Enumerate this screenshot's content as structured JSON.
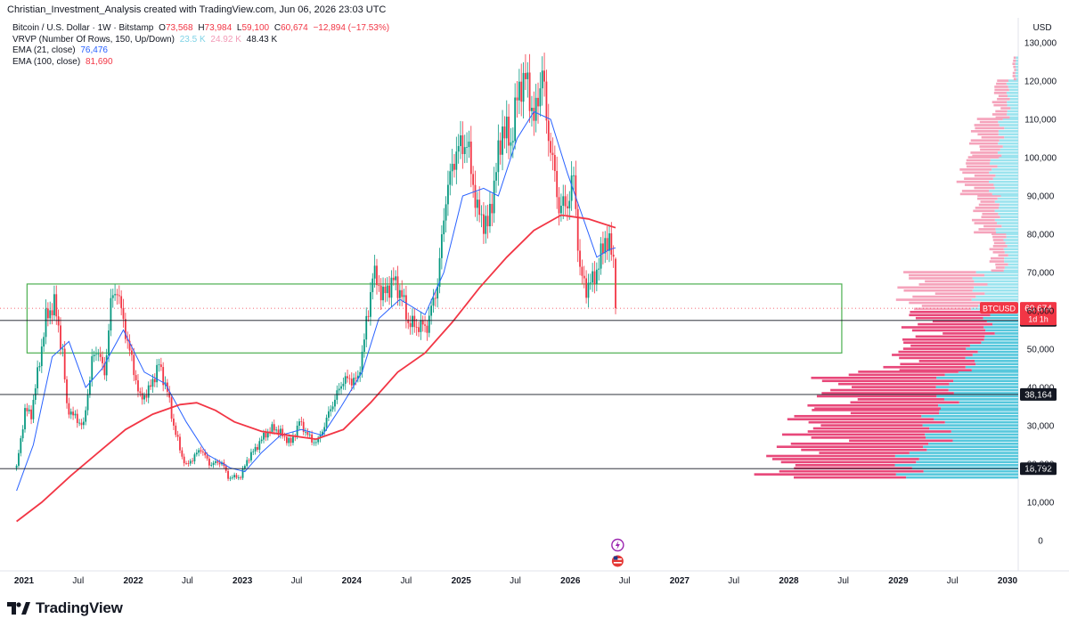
{
  "header": {
    "credit": "Christian_Investment_Analysis created with TradingView.com, Jun 06, 2026 23:03 UTC"
  },
  "legend": {
    "symbol": "Bitcoin / U.S. Dollar · 1W · Bitstamp",
    "open_label": "O",
    "open": "73,568",
    "high_label": "H",
    "high": "73,984",
    "low_label": "L",
    "low": "59,100",
    "close_label": "C",
    "close": "60,674",
    "change": "−12,894 (−17.53%)",
    "vrvp_label": "VRVP (Number Of Rows, 150, Up/Down)",
    "vrvp_up": "23.5 K",
    "vrvp_down": "24.92 K",
    "vrvp_total": "48.43 K",
    "ema21_label": "EMA (21, close)",
    "ema21_value": "76,476",
    "ema100_label": "EMA (100, close)",
    "ema100_value": "81,690"
  },
  "colors": {
    "up": "#089981",
    "down": "#f23645",
    "ema21": "#2962ff",
    "ema100": "#f23645",
    "vp_up": "#9be3ee",
    "vp_down": "#f5a3bb",
    "vp_up_va": "#56c7dc",
    "vp_down_va": "#e8487a",
    "zone": "#4caf50",
    "level": "#131722"
  },
  "chart_data": {
    "type": "candlestick",
    "currency_label": "USD",
    "y_ticks": [
      0,
      10000,
      20000,
      30000,
      40000,
      50000,
      60000,
      70000,
      80000,
      90000,
      100000,
      110000,
      120000,
      130000
    ],
    "y_tick_labels": [
      "0",
      "10,000",
      "20,000",
      "30,000",
      "40,000",
      "50,000",
      "60,000",
      "70,000",
      "80,000",
      "90,000",
      "100,000",
      "110,000",
      "120,000",
      "130,000"
    ],
    "x_ticks": [
      {
        "date": "2021-01-01",
        "label": "2021",
        "bold": true
      },
      {
        "date": "2021-07-01",
        "label": "Jul",
        "bold": false
      },
      {
        "date": "2022-01-01",
        "label": "2022",
        "bold": true
      },
      {
        "date": "2022-07-01",
        "label": "Jul",
        "bold": false
      },
      {
        "date": "2023-01-01",
        "label": "2023",
        "bold": true
      },
      {
        "date": "2023-07-01",
        "label": "Jul",
        "bold": false
      },
      {
        "date": "2024-01-01",
        "label": "2024",
        "bold": true
      },
      {
        "date": "2024-07-01",
        "label": "Jul",
        "bold": false
      },
      {
        "date": "2025-01-01",
        "label": "2025",
        "bold": true
      },
      {
        "date": "2025-07-01",
        "label": "Jul",
        "bold": false
      },
      {
        "date": "2026-01-01",
        "label": "2026",
        "bold": true
      },
      {
        "date": "2026-07-01",
        "label": "Jul",
        "bold": false
      },
      {
        "date": "2027-01-01",
        "label": "2027",
        "bold": true
      },
      {
        "date": "2027-07-01",
        "label": "Jul",
        "bold": false
      },
      {
        "date": "2028-01-01",
        "label": "2028",
        "bold": true
      },
      {
        "date": "2028-07-01",
        "label": "Jul",
        "bold": false
      },
      {
        "date": "2029-01-01",
        "label": "2029",
        "bold": true
      },
      {
        "date": "2029-07-01",
        "label": "Jul",
        "bold": false
      },
      {
        "date": "2030-01-01",
        "label": "2030",
        "bold": true
      }
    ],
    "price_path": [
      [
        "2020-12-07",
        19000
      ],
      [
        "2021-01-04",
        34000
      ],
      [
        "2021-01-25",
        33000
      ],
      [
        "2021-02-22",
        47000
      ],
      [
        "2021-03-15",
        58000
      ],
      [
        "2021-04-12",
        62000
      ],
      [
        "2021-05-10",
        49000
      ],
      [
        "2021-05-24",
        35000
      ],
      [
        "2021-06-21",
        32000
      ],
      [
        "2021-07-19",
        30000
      ],
      [
        "2021-08-16",
        47000
      ],
      [
        "2021-09-06",
        50000
      ],
      [
        "2021-09-27",
        43000
      ],
      [
        "2021-10-18",
        62000
      ],
      [
        "2021-11-08",
        66000
      ],
      [
        "2021-11-29",
        57000
      ],
      [
        "2021-12-27",
        47000
      ],
      [
        "2022-01-24",
        37000
      ],
      [
        "2022-02-21",
        39000
      ],
      [
        "2022-03-28",
        46000
      ],
      [
        "2022-04-25",
        39000
      ],
      [
        "2022-05-16",
        30000
      ],
      [
        "2022-06-13",
        22000
      ],
      [
        "2022-06-27",
        19500
      ],
      [
        "2022-08-15",
        24000
      ],
      [
        "2022-09-12",
        20000
      ],
      [
        "2022-10-24",
        20500
      ],
      [
        "2022-11-14",
        16500
      ],
      [
        "2022-12-26",
        16700
      ],
      [
        "2023-01-16",
        21000
      ],
      [
        "2023-02-13",
        24000
      ],
      [
        "2023-03-20",
        28000
      ],
      [
        "2023-04-17",
        29500
      ],
      [
        "2023-06-12",
        25500
      ],
      [
        "2023-07-10",
        31000
      ],
      [
        "2023-08-21",
        26000
      ],
      [
        "2023-09-11",
        26000
      ],
      [
        "2023-10-23",
        34500
      ],
      [
        "2023-12-04",
        42000
      ],
      [
        "2024-01-22",
        42000
      ],
      [
        "2024-02-26",
        60000
      ],
      [
        "2024-03-11",
        70000
      ],
      [
        "2024-04-15",
        64000
      ],
      [
        "2024-05-20",
        68000
      ],
      [
        "2024-06-17",
        64000
      ],
      [
        "2024-07-08",
        57000
      ],
      [
        "2024-08-05",
        56000
      ],
      [
        "2024-09-09",
        56000
      ],
      [
        "2024-10-14",
        67000
      ],
      [
        "2024-11-11",
        90000
      ],
      [
        "2024-12-16",
        102000
      ],
      [
        "2025-01-20",
        104000
      ],
      [
        "2025-02-24",
        86000
      ],
      [
        "2025-03-31",
        82000
      ],
      [
        "2025-04-21",
        93000
      ],
      [
        "2025-05-19",
        108000
      ],
      [
        "2025-06-16",
        104000
      ],
      [
        "2025-07-14",
        119000
      ],
      [
        "2025-08-11",
        120000
      ],
      [
        "2025-09-01",
        109000
      ],
      [
        "2025-09-29",
        123000
      ],
      [
        "2025-10-13",
        110000
      ],
      [
        "2025-11-10",
        95000
      ],
      [
        "2025-11-24",
        87000
      ],
      [
        "2025-12-22",
        88000
      ],
      [
        "2026-01-12",
        95000
      ],
      [
        "2026-02-02",
        70000
      ],
      [
        "2026-02-23",
        66000
      ],
      [
        "2026-03-16",
        68000
      ],
      [
        "2026-04-06",
        72000
      ],
      [
        "2026-04-27",
        79000
      ],
      [
        "2026-05-11",
        77000
      ],
      [
        "2026-05-25",
        73568
      ],
      [
        "2026-06-01",
        60674
      ]
    ],
    "ema21_path": [
      [
        "2020-12-07",
        13000
      ],
      [
        "2021-02-01",
        25000
      ],
      [
        "2021-04-05",
        48000
      ],
      [
        "2021-05-31",
        52000
      ],
      [
        "2021-07-26",
        40000
      ],
      [
        "2021-09-20",
        45000
      ],
      [
        "2021-11-29",
        55000
      ],
      [
        "2022-02-07",
        44000
      ],
      [
        "2022-04-18",
        41000
      ],
      [
        "2022-06-27",
        31000
      ],
      [
        "2022-09-05",
        22500
      ],
      [
        "2022-11-21",
        19000
      ],
      [
        "2023-01-09",
        18000
      ],
      [
        "2023-03-06",
        23000
      ],
      [
        "2023-05-08",
        27500
      ],
      [
        "2023-07-17",
        29000
      ],
      [
        "2023-09-25",
        27500
      ],
      [
        "2023-11-27",
        35000
      ],
      [
        "2024-02-05",
        44000
      ],
      [
        "2024-04-01",
        58000
      ],
      [
        "2024-06-10",
        63000
      ],
      [
        "2024-09-02",
        59000
      ],
      [
        "2024-11-04",
        70000
      ],
      [
        "2025-01-06",
        90000
      ],
      [
        "2025-03-17",
        92000
      ],
      [
        "2025-05-05",
        90000
      ],
      [
        "2025-07-07",
        105000
      ],
      [
        "2025-09-01",
        112000
      ],
      [
        "2025-10-27",
        110000
      ],
      [
        "2025-12-22",
        96000
      ],
      [
        "2026-02-09",
        85000
      ],
      [
        "2026-03-30",
        74000
      ],
      [
        "2026-05-11",
        76000
      ],
      [
        "2026-06-01",
        76476
      ]
    ],
    "ema100_path": [
      [
        "2020-12-07",
        5000
      ],
      [
        "2021-03-01",
        10000
      ],
      [
        "2021-06-07",
        17000
      ],
      [
        "2021-09-06",
        23000
      ],
      [
        "2021-12-06",
        29000
      ],
      [
        "2022-03-07",
        33000
      ],
      [
        "2022-06-06",
        35500
      ],
      [
        "2022-08-01",
        36000
      ],
      [
        "2022-10-03",
        34000
      ],
      [
        "2022-12-05",
        31000
      ],
      [
        "2023-03-06",
        28500
      ],
      [
        "2023-06-05",
        27500
      ],
      [
        "2023-09-04",
        26500
      ],
      [
        "2023-12-04",
        29000
      ],
      [
        "2024-03-04",
        36000
      ],
      [
        "2024-06-03",
        44000
      ],
      [
        "2024-09-02",
        49000
      ],
      [
        "2024-12-02",
        57000
      ],
      [
        "2025-03-03",
        66000
      ],
      [
        "2025-06-02",
        74000
      ],
      [
        "2025-09-01",
        81000
      ],
      [
        "2025-12-01",
        85000
      ],
      [
        "2026-03-02",
        84000
      ],
      [
        "2026-06-01",
        81690
      ]
    ],
    "zone": {
      "start": "2021-01-11",
      "end": "2028-06-26",
      "low": 49000,
      "high": 67000
    },
    "levels": [
      {
        "value": 57489,
        "label": "57,489"
      },
      {
        "value": 38164,
        "label": "38,164"
      },
      {
        "value": 18792,
        "label": "18,792"
      }
    ],
    "current_price": {
      "value": 60674,
      "symbol": "BTCUSD",
      "price_label": "60,674",
      "countdown": "1d 1h"
    },
    "volume_profile": [
      {
        "low": 16000,
        "high": 24000,
        "up": 0.42,
        "down": 0.5,
        "value_area": true
      },
      {
        "low": 24000,
        "high": 34000,
        "up": 0.33,
        "down": 0.5,
        "value_area": true
      },
      {
        "low": 34000,
        "high": 44000,
        "up": 0.28,
        "down": 0.45,
        "value_area": true
      },
      {
        "low": 44000,
        "high": 52000,
        "up": 0.18,
        "down": 0.28,
        "value_area": true
      },
      {
        "low": 52000,
        "high": 60000,
        "up": 0.12,
        "down": 0.28,
        "value_area": true
      },
      {
        "low": 60000,
        "high": 70000,
        "up": 0.16,
        "down": 0.26,
        "value_area": false
      },
      {
        "low": 70000,
        "high": 80000,
        "up": 0.05,
        "down": 0.05,
        "value_area": false
      },
      {
        "low": 80000,
        "high": 90000,
        "up": 0.08,
        "down": 0.08,
        "value_area": false
      },
      {
        "low": 90000,
        "high": 100000,
        "up": 0.1,
        "down": 0.11,
        "value_area": false
      },
      {
        "low": 100000,
        "high": 110000,
        "up": 0.07,
        "down": 0.1,
        "value_area": false
      },
      {
        "low": 110000,
        "high": 120000,
        "up": 0.04,
        "down": 0.05,
        "value_area": false
      },
      {
        "low": 120000,
        "high": 126000,
        "up": 0.01,
        "down": 0.01,
        "value_area": false
      }
    ]
  },
  "footer": {
    "brand": "TradingView"
  }
}
